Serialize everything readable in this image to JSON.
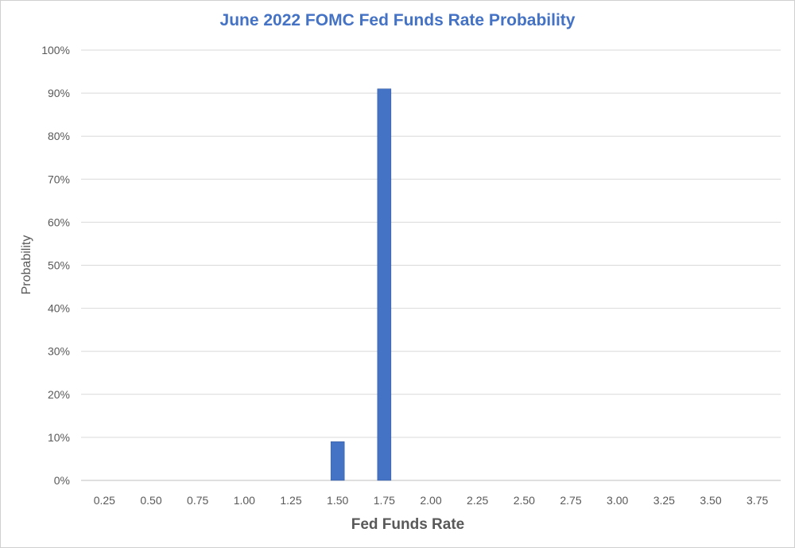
{
  "chart_data": {
    "type": "bar",
    "title": "June 2022 FOMC Fed Funds Rate Probability",
    "xlabel": "Fed Funds Rate",
    "ylabel": "Probability",
    "categories": [
      "0.25",
      "0.50",
      "0.75",
      "1.00",
      "1.25",
      "1.50",
      "1.75",
      "2.00",
      "2.25",
      "2.50",
      "2.75",
      "3.00",
      "3.25",
      "3.50",
      "3.75"
    ],
    "values": [
      0,
      0,
      0,
      0,
      0,
      9,
      91,
      0,
      0,
      0,
      0,
      0,
      0,
      0,
      0
    ],
    "ylim": [
      0,
      100
    ],
    "y_ticks": [
      "0%",
      "10%",
      "20%",
      "30%",
      "40%",
      "50%",
      "60%",
      "70%",
      "80%",
      "90%",
      "100%"
    ],
    "grid": true,
    "legend": "none",
    "bar_color": "#4472c4",
    "title_color": "#4472c4",
    "grid_color": "#d9d9d9"
  }
}
